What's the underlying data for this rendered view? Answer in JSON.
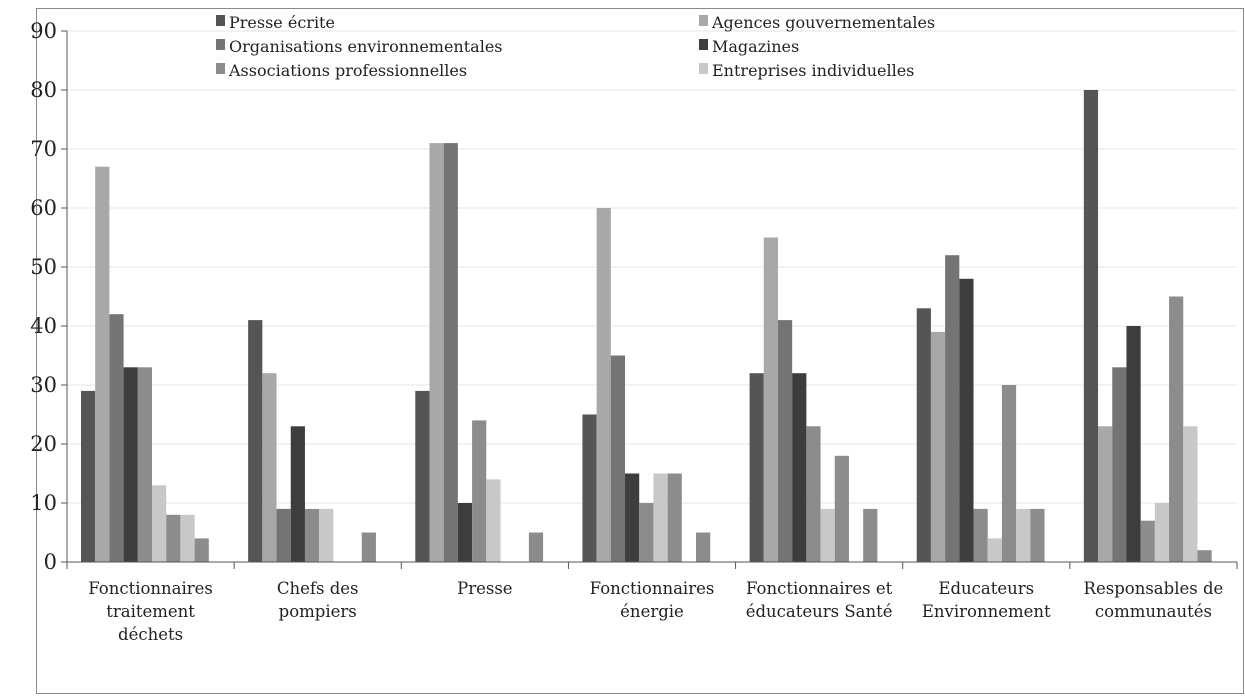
{
  "chart_data": {
    "type": "bar",
    "title": "",
    "xlabel": "",
    "ylabel": "",
    "ylim": [
      0,
      90
    ],
    "yticks": [
      0,
      10,
      20,
      30,
      40,
      50,
      60,
      70,
      80,
      90
    ],
    "grid": true,
    "legend_position": "top",
    "categories": [
      [
        "Fonctionnaires",
        "traitement",
        "déchets"
      ],
      [
        "Chefs des",
        "pompiers"
      ],
      [
        "Presse"
      ],
      [
        "Fonctionnaires",
        "énergie"
      ],
      [
        "Fonctionnaires et",
        "éducateurs Santé"
      ],
      [
        "Educateurs",
        "Environnement"
      ],
      [
        "Responsables de",
        "communautés"
      ]
    ],
    "series": [
      {
        "name": "Presse écrite",
        "color": "#555555",
        "values": [
          29,
          41,
          29,
          25,
          32,
          43,
          80
        ]
      },
      {
        "name": "Agences gouvernementales",
        "color": "#a8a8a8",
        "values": [
          67,
          32,
          71,
          60,
          55,
          39,
          23
        ]
      },
      {
        "name": "Organisations environnementales",
        "color": "#747474",
        "values": [
          42,
          9,
          71,
          35,
          41,
          52,
          33
        ]
      },
      {
        "name": "Magazines",
        "color": "#3d3d3d",
        "values": [
          33,
          23,
          10,
          15,
          32,
          48,
          40
        ]
      },
      {
        "name": "Associations professionnelles",
        "color": "#8c8c8c",
        "values": [
          33,
          9,
          24,
          10,
          23,
          9,
          7
        ]
      },
      {
        "name": "Entreprises individuelles",
        "color": "#c8c8c8",
        "values": [
          13,
          9,
          14,
          15,
          9,
          4,
          10
        ]
      },
      {
        "name": "",
        "color": "#8c8c8c",
        "values": [
          8,
          0,
          0,
          15,
          18,
          30,
          45
        ]
      },
      {
        "name": "",
        "color": "#c8c8c8",
        "values": [
          8,
          0,
          0,
          0,
          0,
          9,
          23
        ]
      },
      {
        "name": "",
        "color": "#8c8c8c",
        "values": [
          4,
          5,
          5,
          5,
          9,
          9,
          2
        ]
      }
    ]
  }
}
